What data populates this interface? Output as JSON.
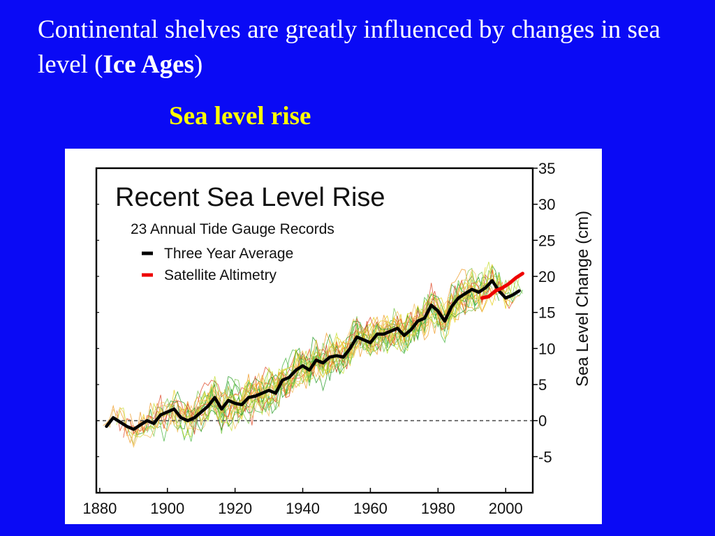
{
  "slide": {
    "title_part1": "Continental shelves are greatly influenced by changes in sea level (",
    "title_bold": "Ice Ages",
    "title_part2": ")",
    "subtitle": "Sea level rise"
  },
  "chart_data": {
    "type": "line",
    "title": "Recent Sea Level Rise",
    "subtitle": "23 Annual Tide Gauge Records",
    "xlabel": "",
    "ylabel": "Sea Level Change (cm)",
    "xlim": [
      1879,
      2008
    ],
    "ylim": [
      -10,
      35
    ],
    "x_ticks": [
      1880,
      1900,
      1920,
      1940,
      1960,
      1980,
      2000
    ],
    "y_ticks": [
      35,
      30,
      25,
      20,
      15,
      10,
      5,
      0,
      -5
    ],
    "zero_line": "dashed",
    "legend": {
      "position": "top-left"
    },
    "series": [
      {
        "name": "Three Year Average",
        "color": "#000000",
        "x": [
          1882,
          1884,
          1886,
          1888,
          1890,
          1892,
          1894,
          1896,
          1898,
          1900,
          1902,
          1904,
          1906,
          1908,
          1910,
          1912,
          1914,
          1916,
          1918,
          1920,
          1922,
          1924,
          1926,
          1928,
          1930,
          1932,
          1934,
          1936,
          1938,
          1940,
          1942,
          1944,
          1946,
          1948,
          1950,
          1952,
          1954,
          1956,
          1958,
          1960,
          1962,
          1964,
          1966,
          1968,
          1970,
          1972,
          1974,
          1976,
          1978,
          1980,
          1982,
          1984,
          1986,
          1988,
          1990,
          1992,
          1994,
          1996,
          1998,
          2000,
          2002,
          2004
        ],
        "y": [
          -0.8,
          0.4,
          -0.2,
          -0.8,
          -1.2,
          -0.6,
          0.0,
          -0.4,
          0.8,
          1.2,
          1.6,
          0.4,
          0.0,
          0.4,
          1.2,
          2.0,
          3.2,
          1.6,
          2.8,
          2.4,
          2.2,
          3.2,
          3.4,
          3.8,
          4.2,
          3.8,
          5.6,
          6.0,
          7.0,
          7.6,
          7.0,
          8.4,
          8.0,
          8.8,
          9.0,
          8.8,
          10.0,
          11.6,
          11.2,
          10.8,
          12.0,
          12.0,
          12.4,
          12.8,
          11.8,
          12.6,
          13.8,
          14.2,
          16.0,
          15.2,
          13.8,
          15.8,
          17.0,
          17.6,
          18.2,
          17.8,
          18.4,
          19.4,
          18.0,
          17.0,
          17.4,
          18.0
        ]
      },
      {
        "name": "Satellite Altimetry",
        "color": "#ee0000",
        "x": [
          1993,
          1995,
          1997,
          1999,
          2001,
          2003,
          2005
        ],
        "y": [
          17.0,
          17.2,
          18.0,
          18.4,
          19.0,
          19.8,
          20.4
        ]
      }
    ]
  }
}
